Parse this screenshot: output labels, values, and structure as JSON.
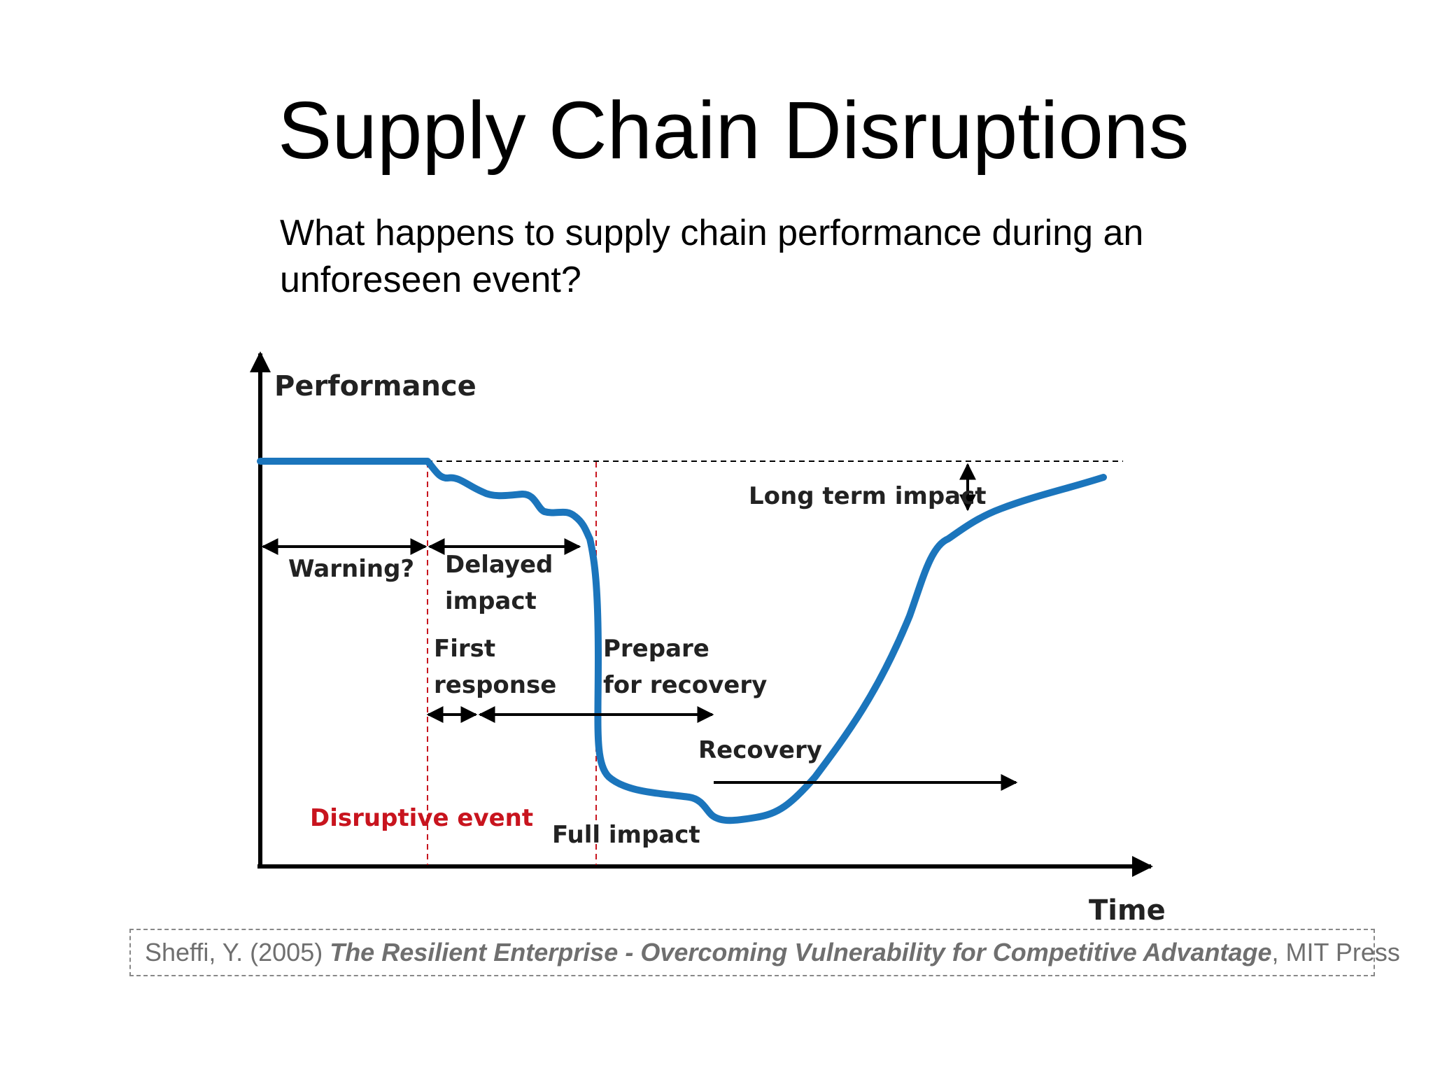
{
  "slide": {
    "title": "Supply Chain Disruptions",
    "subtitle_lines": [
      "What happens to supply chain performance during an",
      "unforeseen event?"
    ]
  },
  "diagram": {
    "y_axis_label": "Performance",
    "x_axis_label": "Time",
    "labels": {
      "warning": "Warning?",
      "delayed_line1": "Delayed",
      "delayed_line2": "impact",
      "first_line1": "First",
      "first_line2": "response",
      "prepare_line1": "Prepare",
      "prepare_line2": "for recovery",
      "recovery": "Recovery",
      "long_term": "Long term impact",
      "disruptive_event": "Disruptive event",
      "full_impact": "Full impact"
    },
    "colors": {
      "curve": "#1b75bc",
      "event_line": "#c8141e",
      "axis": "#000000"
    }
  },
  "citation": {
    "author_year": "Sheffi, Y. (2005) ",
    "book_title": "The Resilient Enterprise - Overcoming Vulnerability for Competitive Advantage",
    "publisher": ", MIT Press"
  }
}
